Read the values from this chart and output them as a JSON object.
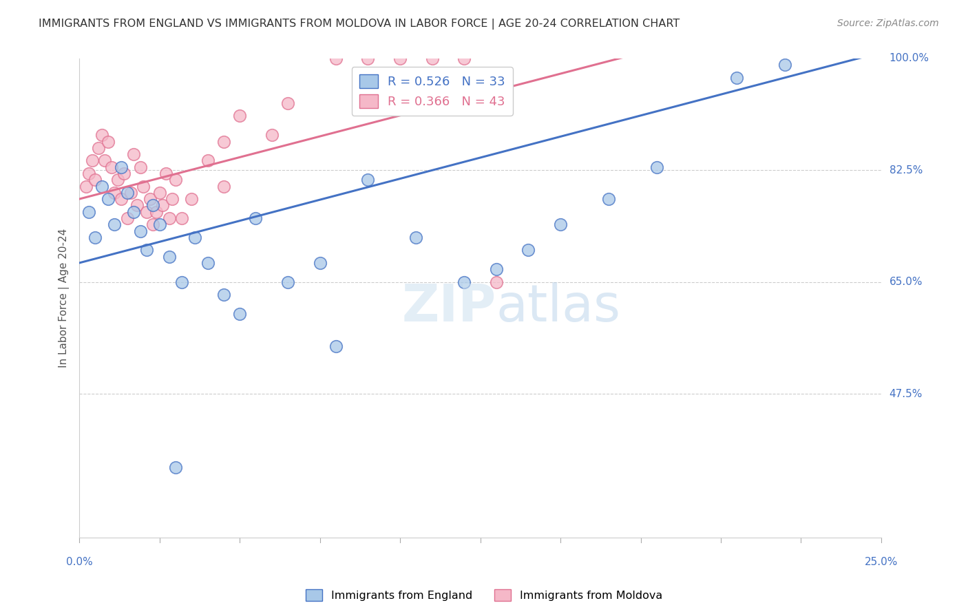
{
  "title": "IMMIGRANTS FROM ENGLAND VS IMMIGRANTS FROM MOLDOVA IN LABOR FORCE | AGE 20-24 CORRELATION CHART",
  "source": "Source: ZipAtlas.com",
  "ylabel": "In Labor Force | Age 20-24",
  "xlim": [
    0.0,
    25.0
  ],
  "ylim": [
    25.0,
    100.0
  ],
  "ytick_grid": [
    47.5,
    65.0,
    82.5
  ],
  "ytick_labels": [
    100.0,
    82.5,
    65.0,
    47.5
  ],
  "england_color": "#a8c8e8",
  "moldova_color": "#f5b8c8",
  "england_line_color": "#4472c4",
  "moldova_line_color": "#e07090",
  "england_R": 0.526,
  "england_N": 33,
  "moldova_R": 0.366,
  "moldova_N": 43,
  "grid_color": "#cccccc",
  "title_color": "#333333",
  "axis_label_color": "#555555",
  "tick_color": "#4472c4",
  "background_color": "#ffffff",
  "england_x": [
    0.3,
    0.5,
    0.7,
    0.9,
    1.1,
    1.3,
    1.5,
    1.7,
    1.9,
    2.1,
    2.3,
    2.5,
    2.8,
    3.2,
    3.6,
    4.0,
    4.5,
    5.0,
    5.5,
    6.5,
    7.5,
    8.0,
    9.0,
    10.5,
    12.0,
    13.0,
    14.0,
    15.0,
    16.5,
    18.0,
    20.5,
    22.0,
    3.0
  ],
  "england_y": [
    76.0,
    72.0,
    80.0,
    78.0,
    74.0,
    83.0,
    79.0,
    76.0,
    73.0,
    70.0,
    77.0,
    74.0,
    69.0,
    65.0,
    72.0,
    68.0,
    63.0,
    60.0,
    75.0,
    65.0,
    68.0,
    55.0,
    81.0,
    72.0,
    65.0,
    67.0,
    70.0,
    74.0,
    78.0,
    83.0,
    97.0,
    99.0,
    36.0
  ],
  "moldova_x": [
    0.2,
    0.3,
    0.4,
    0.5,
    0.6,
    0.7,
    0.8,
    0.9,
    1.0,
    1.1,
    1.2,
    1.3,
    1.4,
    1.5,
    1.6,
    1.7,
    1.8,
    1.9,
    2.0,
    2.1,
    2.2,
    2.3,
    2.4,
    2.5,
    2.6,
    2.7,
    2.8,
    2.9,
    3.0,
    3.2,
    3.5,
    4.0,
    4.5,
    5.0,
    6.0,
    8.0,
    9.0,
    10.0,
    11.0,
    12.0,
    13.0,
    4.5,
    6.5
  ],
  "moldova_y": [
    80.0,
    82.0,
    84.0,
    81.0,
    86.0,
    88.0,
    84.0,
    87.0,
    83.0,
    79.0,
    81.0,
    78.0,
    82.0,
    75.0,
    79.0,
    85.0,
    77.0,
    83.0,
    80.0,
    76.0,
    78.0,
    74.0,
    76.0,
    79.0,
    77.0,
    82.0,
    75.0,
    78.0,
    81.0,
    75.0,
    78.0,
    84.0,
    87.0,
    91.0,
    88.0,
    100.0,
    100.0,
    100.0,
    100.0,
    100.0,
    65.0,
    80.0,
    93.0
  ],
  "england_trend_x0": 0.0,
  "england_trend_y0": 68.0,
  "england_trend_x1": 22.0,
  "england_trend_y1": 97.0,
  "moldova_trend_x0": 0.0,
  "moldova_trend_y0": 78.0,
  "moldova_trend_x1": 13.0,
  "moldova_trend_y1": 95.0
}
